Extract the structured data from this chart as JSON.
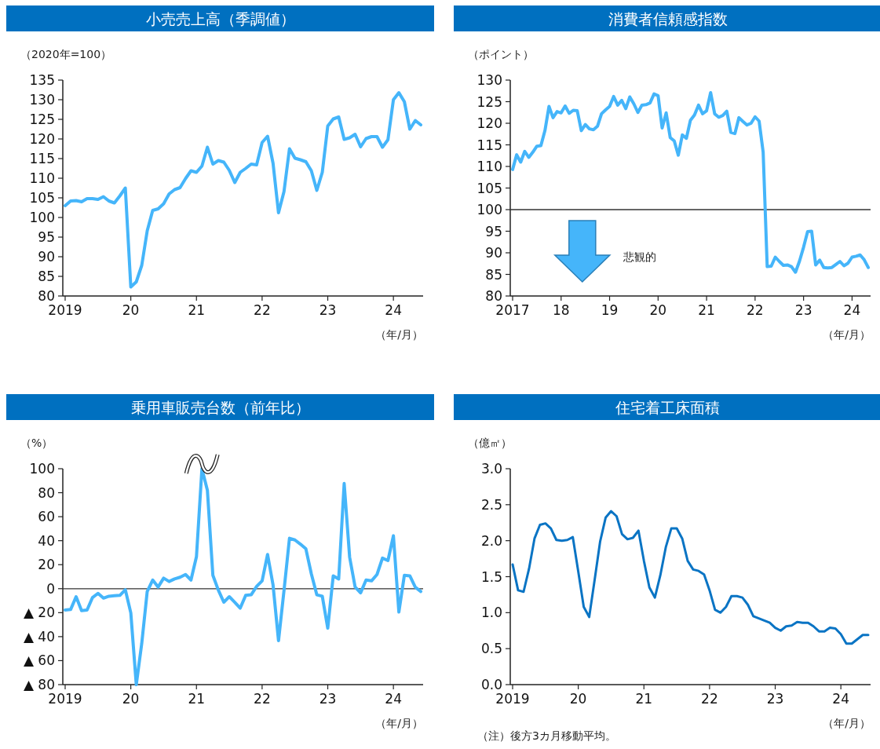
{
  "chart_data": [
    {
      "type": "line",
      "title": "小売売上高（季調値）",
      "ylabel": "（2020年=100）",
      "xlabel": "（年/月）",
      "categories": [
        "2019",
        null,
        null,
        null,
        null,
        null,
        null,
        null,
        null,
        null,
        null,
        null,
        "20",
        null,
        null,
        null,
        null,
        null,
        null,
        null,
        null,
        null,
        null,
        null,
        "21",
        null,
        null,
        null,
        null,
        null,
        null,
        null,
        null,
        null,
        null,
        null,
        "22",
        null,
        null,
        null,
        null,
        null,
        null,
        null,
        null,
        null,
        null,
        null,
        "23",
        null,
        null,
        null,
        null,
        null,
        null,
        null,
        null,
        null,
        null,
        null,
        "24",
        null,
        null,
        null,
        null,
        null
      ],
      "series": [
        {
          "color": "#45b5fa",
          "values": [
            103,
            104.2,
            104.3,
            104,
            104.8,
            104.8,
            104.6,
            105.3,
            104.2,
            103.7,
            105.5,
            107.5,
            82.3,
            83.6,
            87.8,
            96.6,
            101.8,
            102.2,
            103.5,
            106,
            107.1,
            107.6,
            109.9,
            111.9,
            111.5,
            113.1,
            117.9,
            113.6,
            114.5,
            114.1,
            112,
            108.9,
            111.5,
            112.5,
            113.6,
            113.4,
            119.1,
            120.7,
            113.8,
            101.2,
            106.6,
            117.5,
            115.1,
            114.7,
            114.2,
            111.9,
            106.9,
            111.5,
            123.3,
            125.1,
            125.6,
            119.9,
            120.3,
            121.2,
            118,
            120.1,
            120.6,
            120.6,
            117.9,
            119.8,
            130,
            131.8,
            129.5,
            122.5,
            124.7,
            123.6
          ]
        }
      ],
      "ylim": [
        80,
        135
      ],
      "yticks": [
        80,
        85,
        90,
        95,
        100,
        105,
        110,
        115,
        120,
        125,
        130,
        135
      ]
    },
    {
      "type": "line",
      "title": "消費者信頼感指数",
      "ylabel": "（ポイント）",
      "xlabel": "（年/月）",
      "categories": [
        "2017",
        null,
        null,
        null,
        null,
        null,
        null,
        null,
        null,
        null,
        null,
        null,
        "18",
        null,
        null,
        null,
        null,
        null,
        null,
        null,
        null,
        null,
        null,
        null,
        "19",
        null,
        null,
        null,
        null,
        null,
        null,
        null,
        null,
        null,
        null,
        null,
        "20",
        null,
        null,
        null,
        null,
        null,
        null,
        null,
        null,
        null,
        null,
        null,
        "21",
        null,
        null,
        null,
        null,
        null,
        null,
        null,
        null,
        null,
        null,
        null,
        "22",
        null,
        null,
        null,
        null,
        null,
        null,
        null,
        null,
        null,
        null,
        null,
        "23",
        null,
        null,
        null,
        null,
        null,
        null,
        null,
        null,
        null,
        null,
        null,
        "24",
        null,
        null,
        null,
        null
      ],
      "series": [
        {
          "color": "#45b5fa",
          "values": [
            109.3,
            112.7,
            111,
            113.5,
            112.1,
            113.3,
            114.7,
            114.8,
            118.3,
            123.9,
            121.3,
            122.7,
            122.4,
            124,
            122.3,
            123,
            122.9,
            118.3,
            119.7,
            118.7,
            118.5,
            119.3,
            122.2,
            123.1,
            123.9,
            126.2,
            124.2,
            125.3,
            123.4,
            126.1,
            124.5,
            122.5,
            124.2,
            124.3,
            124.7,
            126.8,
            126.4,
            118.9,
            122.4,
            116.7,
            115.9,
            112.6,
            117.3,
            116.5,
            120.7,
            121.9,
            124.2,
            122.2,
            122.9,
            127.1,
            122.2,
            121.4,
            121.8,
            122.8,
            117.9,
            117.6,
            121.3,
            120.4,
            119.6,
            120,
            121.5,
            120.5,
            113.3,
            86.8,
            86.9,
            89,
            88,
            87.1,
            87.2,
            86.8,
            85.5,
            88.1,
            91.3,
            94.9,
            95,
            87.2,
            88.3,
            86.6,
            86.5,
            86.6,
            87.3,
            88,
            87,
            87.6,
            89,
            89.2,
            89.5,
            88.4,
            86.6
          ]
        }
      ],
      "ylim": [
        80,
        130
      ],
      "yticks": [
        80,
        85,
        90,
        95,
        100,
        105,
        110,
        115,
        120,
        125,
        130
      ],
      "ref_lines": [
        {
          "axis": "y",
          "value": 100
        }
      ],
      "annotations": [
        "悲観的"
      ]
    },
    {
      "type": "line",
      "title": "乗用車販売台数（前年比）",
      "ylabel": "（%）",
      "xlabel": "（年/月）",
      "categories": [
        "2019",
        null,
        null,
        null,
        null,
        null,
        null,
        null,
        null,
        null,
        null,
        null,
        "20",
        null,
        null,
        null,
        null,
        null,
        null,
        null,
        null,
        null,
        null,
        null,
        "21",
        null,
        null,
        null,
        null,
        null,
        null,
        null,
        null,
        null,
        null,
        null,
        "22",
        null,
        null,
        null,
        null,
        null,
        null,
        null,
        null,
        null,
        null,
        null,
        "23",
        null,
        null,
        null,
        null,
        null,
        null,
        null,
        null,
        null,
        null,
        null,
        "24",
        null,
        null,
        null,
        null,
        null
      ],
      "series": [
        {
          "color": "#45b5fa",
          "values": [
            -17.8,
            -17.4,
            -6.7,
            -18.3,
            -17.8,
            -7.4,
            -3.9,
            -7.9,
            -6.3,
            -5.8,
            -5.6,
            -0.9,
            -20.2,
            -80,
            -45.7,
            -2.3,
            7.2,
            1.4,
            8.8,
            6,
            8.1,
            9.5,
            11.8,
            7.2,
            26.7,
            100,
            82,
            11.1,
            -1.2,
            -11.3,
            -6.7,
            -11.3,
            -16.2,
            -5.6,
            -5.1,
            1.9,
            6.5,
            28.5,
            3,
            -43.4,
            -1.6,
            42,
            40.6,
            37.1,
            33.2,
            12.3,
            -5.1,
            -6.3,
            -32.9,
            10.7,
            8.1,
            87.7,
            26.2,
            1.4,
            -3.5,
            7.2,
            6.5,
            11.8,
            25.5,
            23.4,
            44.1,
            -19.5,
            11.1,
            10.7,
            1.2,
            -2.3
          ]
        }
      ],
      "ylim": [
        -80,
        100
      ],
      "yticks": [
        {
          "value": -80,
          "label": "▲ 80"
        },
        {
          "value": -60,
          "label": "▲ 60"
        },
        {
          "value": -40,
          "label": "▲ 40"
        },
        {
          "value": -20,
          "label": "▲ 20"
        },
        0,
        20,
        40,
        60,
        80,
        100
      ],
      "ref_lines": [
        {
          "axis": "y",
          "value": 0
        }
      ]
    },
    {
      "type": "line",
      "title": "住宅着工床面積",
      "ylabel": "（億㎡）",
      "xlabel": "（年/月）",
      "categories": [
        "2019",
        null,
        null,
        null,
        null,
        null,
        null,
        null,
        null,
        null,
        null,
        null,
        "20",
        null,
        null,
        null,
        null,
        null,
        null,
        null,
        null,
        null,
        null,
        null,
        "21",
        null,
        null,
        null,
        null,
        null,
        null,
        null,
        null,
        null,
        null,
        null,
        "22",
        null,
        null,
        null,
        null,
        null,
        null,
        null,
        null,
        null,
        null,
        null,
        "23",
        null,
        null,
        null,
        null,
        null,
        null,
        null,
        null,
        null,
        null,
        null,
        "24",
        null,
        null,
        null,
        null,
        null
      ],
      "series": [
        {
          "color": "#0a74c4",
          "values": [
            1.67,
            1.31,
            1.29,
            1.61,
            2.03,
            2.22,
            2.24,
            2.17,
            2.01,
            2.0,
            2.01,
            2.05,
            1.57,
            1.08,
            0.94,
            1.46,
            1.99,
            2.32,
            2.41,
            2.34,
            2.09,
            2.02,
            2.04,
            2.14,
            1.72,
            1.35,
            1.21,
            1.52,
            1.91,
            2.17,
            2.17,
            2.03,
            1.72,
            1.6,
            1.58,
            1.53,
            1.31,
            1.04,
            1.0,
            1.08,
            1.23,
            1.23,
            1.21,
            1.11,
            0.95,
            0.92,
            0.89,
            0.86,
            0.79,
            0.75,
            0.81,
            0.82,
            0.87,
            0.86,
            0.86,
            0.81,
            0.74,
            0.74,
            0.79,
            0.78,
            0.7,
            0.57,
            0.57,
            0.63,
            0.69,
            0.69
          ]
        }
      ],
      "ylim": [
        0,
        3
      ],
      "yticks": [
        {
          "value": 0,
          "label": "0.0"
        },
        {
          "value": 0.5,
          "label": "0.5"
        },
        {
          "value": 1,
          "label": "1.0"
        },
        {
          "value": 1.5,
          "label": "1.5"
        },
        {
          "value": 2,
          "label": "2.0"
        },
        {
          "value": 2.5,
          "label": "2.5"
        },
        {
          "value": 3,
          "label": "3.0"
        }
      ],
      "annotations": [
        "（注）後方3カ月移動平均。"
      ]
    }
  ]
}
